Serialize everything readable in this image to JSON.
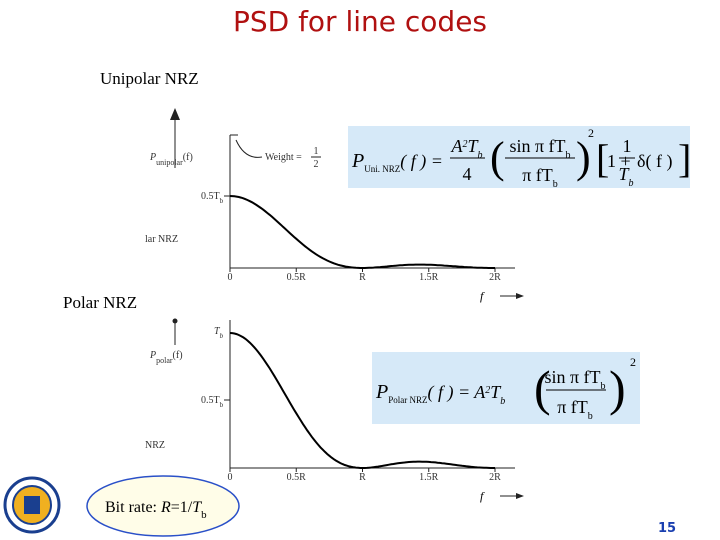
{
  "title": "PSD for line codes",
  "unipolar": {
    "label": "Unipolar NRZ",
    "y_label": [
      "P",
      "unipolar",
      "(f)"
    ],
    "weight": [
      "Weight =",
      "1",
      "2"
    ],
    "y_tick": [
      "0.5T",
      "b"
    ],
    "side_label": "lar NRZ",
    "x_ticks": [
      "0",
      "0.5R",
      "R",
      "1.5R",
      "2R"
    ],
    "x_axis_label": "f",
    "formula": {
      "lhs": [
        "P",
        "Uni. NRZ",
        "( f ) ="
      ],
      "coef_num": [
        "A",
        "2",
        "T",
        "b"
      ],
      "coef_den": "4",
      "sinc_num": [
        "sin π fT",
        "b"
      ],
      "sinc_den": [
        "π fT",
        "b"
      ],
      "exp": "2",
      "bracket": [
        "1 +",
        "δ( f )"
      ],
      "frac_num": "1",
      "frac_den": [
        "T",
        "b"
      ]
    }
  },
  "polar": {
    "label": "Polar NRZ",
    "y_label": [
      "P",
      "polar",
      "(f)"
    ],
    "y_tick_top": [
      "T",
      "b"
    ],
    "y_tick": [
      "0.5T",
      "b"
    ],
    "side_label": "NRZ",
    "x_ticks": [
      "0",
      "0.5R",
      "R",
      "1.5R",
      "2R"
    ],
    "x_axis_label": "f",
    "formula": {
      "lhs": [
        "P",
        "Polar NRZ",
        "( f ) = A",
        "2",
        "T",
        "b"
      ],
      "sinc_num": [
        "sin π fT",
        "b"
      ],
      "sinc_den": [
        "π fT",
        "b"
      ],
      "exp": "2"
    }
  },
  "bit_rate": [
    "Bit rate: ",
    "R",
    "=1/",
    "T",
    "b"
  ],
  "page_number": "15"
}
